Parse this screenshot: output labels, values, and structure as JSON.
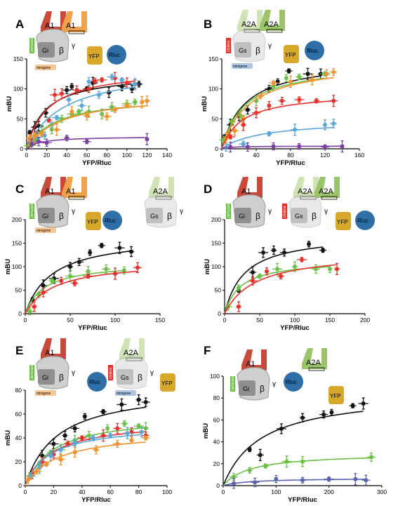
{
  "figure": {
    "labels": {
      "receptor_A1": "A1",
      "receptor_A2A": "A2A",
      "G_i": "Gi",
      "G_s": "Gs",
      "beta": "β",
      "gamma": "γ",
      "YFP": "YFP",
      "Rluc": "Rluc",
      "pertussis": "pertussis",
      "cholera": "cholera",
      "minigene": "minigene"
    },
    "colors": {
      "black": "#111111",
      "red": "#e8302b",
      "orange": "#f2922e",
      "lightblue": "#5aa6d8",
      "green": "#6abf45",
      "purple": "#7a3fa0",
      "slateblue": "#5a62b0",
      "A1_red": "#c94a3a",
      "A1_orange": "#f0a24a",
      "A2A_green": "#9cc46a",
      "A2A_light": "#cfe3b5",
      "YFP_gold": "#d8a82a",
      "Rluc_blue": "#2f6fa8",
      "G_gray": "#8f8f8f"
    }
  },
  "chart_data": [
    {
      "panel": "A",
      "type": "scatter",
      "xlabel": "YFP/Rluc",
      "ylabel": "mBU",
      "xlim": [
        0,
        140
      ],
      "ylim": [
        0,
        150
      ],
      "xticks": [
        0,
        20,
        40,
        60,
        80,
        100,
        120,
        140
      ],
      "yticks": [
        0,
        50,
        100,
        150
      ],
      "series": [
        {
          "color": "black",
          "x": [
            3,
            8,
            12,
            19,
            40,
            45,
            60,
            66,
            82,
            95,
            105,
            112
          ],
          "y": [
            27,
            36,
            38,
            60,
            98,
            104,
            100,
            110,
            94,
            104,
            100,
            108
          ]
        },
        {
          "color": "red",
          "x": [
            5,
            10,
            22,
            28,
            35,
            50,
            62,
            68,
            75,
            88,
            100,
            108
          ],
          "y": [
            10,
            25,
            48,
            90,
            92,
            98,
            100,
            113,
            115,
            118,
            110,
            108
          ]
        },
        {
          "color": "lightblue",
          "x": [
            4,
            10,
            18,
            25,
            30,
            42,
            55,
            62,
            72,
            85,
            95,
            108
          ],
          "y": [
            12,
            18,
            22,
            40,
            52,
            82,
            72,
            112,
            90,
            120,
            115,
            108
          ]
        },
        {
          "color": "green",
          "x": [
            2,
            8,
            15,
            25,
            35,
            45,
            52,
            62,
            75,
            85,
            100,
            108
          ],
          "y": [
            5,
            15,
            28,
            32,
            50,
            58,
            62,
            62,
            58,
            70,
            75,
            78
          ]
        },
        {
          "color": "orange",
          "x": [
            3,
            8,
            15,
            30,
            45,
            60,
            80,
            88,
            100,
            115,
            120
          ],
          "y": [
            18,
            22,
            25,
            32,
            62,
            55,
            54,
            65,
            72,
            78,
            80
          ]
        },
        {
          "color": "purple",
          "x": [
            5,
            12,
            20,
            40,
            60,
            120
          ],
          "y": [
            8,
            12,
            10,
            18,
            12,
            16
          ]
        }
      ]
    },
    {
      "panel": "B",
      "type": "scatter",
      "xlabel": "YFP/Rluc",
      "ylabel": "mBU",
      "xlim": [
        0,
        160
      ],
      "ylim": [
        0,
        150
      ],
      "xticks": [
        0,
        40,
        80,
        120,
        160
      ],
      "yticks": [
        0,
        50,
        100,
        150
      ],
      "series": [
        {
          "color": "black",
          "x": [
            3,
            10,
            20,
            30,
            55,
            65,
            78,
            100,
            115
          ],
          "y": [
            20,
            40,
            55,
            65,
            100,
            112,
            130,
            125,
            125
          ]
        },
        {
          "color": "green",
          "x": [
            2,
            8,
            12,
            22,
            40,
            60,
            75,
            90,
            120
          ],
          "y": [
            15,
            28,
            45,
            55,
            80,
            105,
            118,
            120,
            125
          ]
        },
        {
          "color": "orange",
          "x": [
            5,
            15,
            25,
            45,
            60,
            80,
            105,
            122,
            130
          ],
          "y": [
            18,
            30,
            50,
            88,
            110,
            112,
            115,
            125,
            128
          ]
        },
        {
          "color": "red",
          "x": [
            10,
            25,
            40,
            55,
            70,
            90,
            110,
            130
          ],
          "y": [
            20,
            40,
            60,
            72,
            80,
            82,
            80,
            80
          ]
        },
        {
          "color": "lightblue",
          "x": [
            5,
            25,
            55,
            85,
            120,
            130
          ],
          "y": [
            2,
            8,
            25,
            32,
            40,
            42
          ]
        },
        {
          "color": "purple",
          "x": [
            10,
            30,
            60,
            90,
            120,
            140
          ],
          "y": [
            3,
            3,
            4,
            4,
            3,
            4
          ]
        }
      ]
    },
    {
      "panel": "C",
      "type": "scatter",
      "xlabel": "YFP/Rluc",
      "ylabel": "mBU",
      "xlim": [
        0,
        150
      ],
      "ylim": [
        0,
        200
      ],
      "xticks": [
        0,
        50,
        100,
        150
      ],
      "yticks": [
        0,
        50,
        100,
        150,
        200
      ],
      "series": [
        {
          "color": "black",
          "x": [
            8,
            20,
            32,
            50,
            60,
            72,
            85,
            105,
            118
          ],
          "y": [
            30,
            60,
            75,
            100,
            110,
            130,
            145,
            140,
            132
          ]
        },
        {
          "color": "green",
          "x": [
            5,
            15,
            30,
            50,
            70,
            90,
            110
          ],
          "y": [
            5,
            40,
            70,
            80,
            90,
            95,
            92
          ]
        },
        {
          "color": "red",
          "x": [
            10,
            20,
            40,
            55,
            70,
            100,
            125
          ],
          "y": [
            15,
            45,
            70,
            65,
            80,
            85,
            98
          ]
        }
      ]
    },
    {
      "panel": "D",
      "type": "scatter",
      "xlabel": "YFP/Rluc",
      "ylabel": "mBU",
      "xlim": [
        0,
        200
      ],
      "ylim": [
        0,
        200
      ],
      "xticks": [
        0,
        50,
        100,
        150,
        200
      ],
      "yticks": [
        0,
        50,
        100,
        150,
        200
      ],
      "series": [
        {
          "color": "black",
          "x": [
            20,
            40,
            55,
            70,
            85,
            120,
            140
          ],
          "y": [
            50,
            88,
            130,
            135,
            130,
            148,
            135
          ]
        },
        {
          "color": "green",
          "x": [
            5,
            20,
            50,
            75,
            100,
            130,
            150
          ],
          "y": [
            15,
            55,
            80,
            95,
            100,
            95,
            95
          ]
        },
        {
          "color": "red",
          "x": [
            20,
            40,
            60,
            80,
            110,
            160
          ],
          "y": [
            15,
            70,
            90,
            80,
            115,
            95
          ]
        }
      ]
    },
    {
      "panel": "E",
      "type": "scatter",
      "xlabel": "YFP/Rluc",
      "ylabel": "mBU",
      "xlim": [
        0,
        100
      ],
      "ylim": [
        0,
        80
      ],
      "xticks": [
        0,
        20,
        40,
        60,
        80,
        100
      ],
      "yticks": [
        0,
        20,
        40,
        60,
        80
      ],
      "series": [
        {
          "color": "black",
          "x": [
            5,
            12,
            20,
            28,
            35,
            42,
            55,
            68,
            80,
            85
          ],
          "y": [
            10,
            25,
            35,
            42,
            48,
            58,
            62,
            68,
            72,
            70
          ]
        },
        {
          "color": "green",
          "x": [
            3,
            10,
            18,
            25,
            35,
            45,
            58,
            70,
            80,
            85
          ],
          "y": [
            8,
            18,
            28,
            30,
            38,
            42,
            48,
            52,
            50,
            48
          ]
        },
        {
          "color": "red",
          "x": [
            5,
            12,
            20,
            30,
            40,
            55,
            65,
            75,
            85
          ],
          "y": [
            10,
            20,
            26,
            35,
            40,
            42,
            48,
            45,
            42
          ]
        },
        {
          "color": "lightblue",
          "x": [
            4,
            10,
            18,
            25,
            35,
            48,
            60,
            72,
            82
          ],
          "y": [
            8,
            15,
            25,
            30,
            36,
            40,
            42,
            44,
            45
          ]
        },
        {
          "color": "orange",
          "x": [
            2,
            8,
            15,
            25,
            35,
            50,
            65,
            75,
            85
          ],
          "y": [
            5,
            12,
            18,
            22,
            28,
            30,
            35,
            38,
            40
          ]
        }
      ]
    },
    {
      "panel": "F",
      "type": "scatter",
      "xlabel": "YFP/Rluc",
      "ylabel": "mBU",
      "xlim": [
        0,
        300
      ],
      "ylim": [
        0,
        100
      ],
      "xticks": [
        0,
        100,
        200,
        300
      ],
      "yticks": [
        0,
        20,
        40,
        60,
        80,
        100
      ],
      "series": [
        {
          "color": "black",
          "x": [
            50,
            70,
            110,
            150,
            190,
            205,
            245,
            265
          ],
          "y": [
            33,
            28,
            52,
            62,
            65,
            67,
            73,
            75
          ]
        },
        {
          "color": "green",
          "x": [
            20,
            50,
            80,
            120,
            150,
            280
          ],
          "y": [
            8,
            14,
            18,
            22,
            22,
            26
          ]
        },
        {
          "color": "slateblue",
          "x": [
            20,
            60,
            100,
            150,
            200,
            250,
            270
          ],
          "y": [
            2,
            3,
            6,
            5,
            6,
            6,
            5
          ]
        }
      ]
    }
  ]
}
